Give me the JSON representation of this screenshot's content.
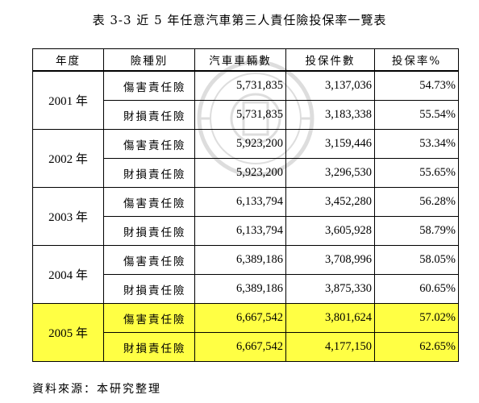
{
  "title": "表 3-3  近 5 年任意汽車第三人責任險投保率一覽表",
  "table": {
    "headers": [
      "年度",
      "險種別",
      "汽車車輛數",
      "投保件數",
      "投保率%"
    ],
    "groups": [
      {
        "year": "2001 年",
        "rows": [
          {
            "type": "傷害責任險",
            "vehicles": "5,731,835",
            "policies": "3,137,036",
            "rate": "54.73%"
          },
          {
            "type": "財損責任險",
            "vehicles": "5,731,835",
            "policies": "3,183,338",
            "rate": "55.54%"
          }
        ]
      },
      {
        "year": "2002 年",
        "rows": [
          {
            "type": "傷害責任險",
            "vehicles": "5,923,200",
            "policies": "3,159,446",
            "rate": "53.34%"
          },
          {
            "type": "財損責任險",
            "vehicles": "5,923,200",
            "policies": "3,296,530",
            "rate": "55.65%"
          }
        ]
      },
      {
        "year": "2003 年",
        "rows": [
          {
            "type": "傷害責任險",
            "vehicles": "6,133,794",
            "policies": "3,452,280",
            "rate": "56.28%"
          },
          {
            "type": "財損責任險",
            "vehicles": "6,133,794",
            "policies": "3,605,928",
            "rate": "58.79%"
          }
        ]
      },
      {
        "year": "2004 年",
        "rows": [
          {
            "type": "傷害責任險",
            "vehicles": "6,389,186",
            "policies": "3,708,996",
            "rate": "58.05%"
          },
          {
            "type": "財損責任險",
            "vehicles": "6,389,186",
            "policies": "3,875,330",
            "rate": "60.65%"
          }
        ]
      },
      {
        "year": "2005 年",
        "rows": [
          {
            "type": "傷害責任險",
            "vehicles": "6,667,542",
            "policies": "3,801,624",
            "rate": "57.02%"
          },
          {
            "type": "財損責任險",
            "vehicles": "6,667,542",
            "policies": "4,177,150",
            "rate": "62.65%"
          }
        ]
      }
    ]
  },
  "highlight_color": "#ffff44",
  "source": "資料來源：本研究整理",
  "watermark_icon": "university-seal-icon"
}
